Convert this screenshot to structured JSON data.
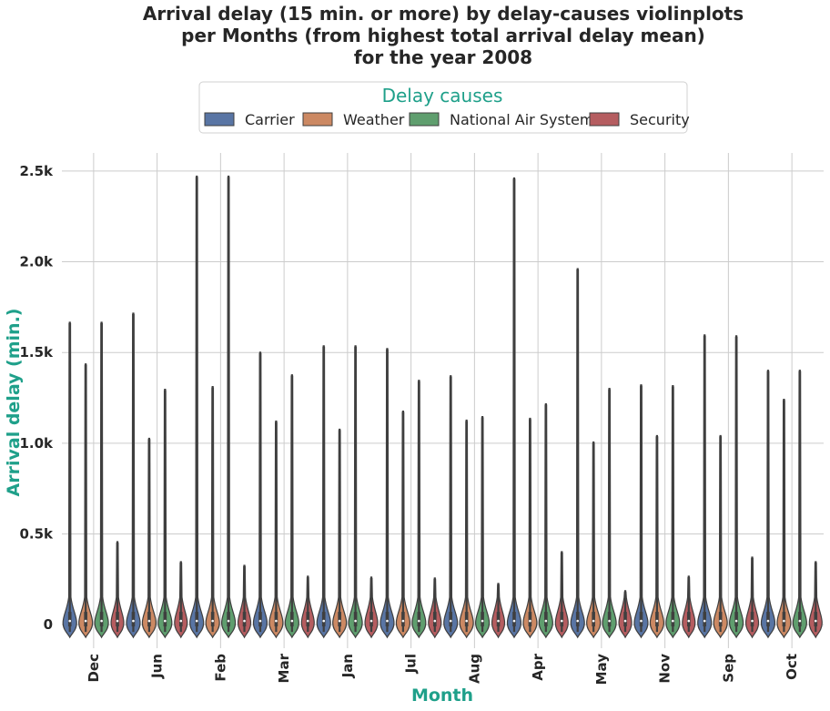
{
  "chart_data": {
    "type": "violin",
    "title_lines": [
      "Arrival delay (15 min. or more) by delay-causes violinplots",
      "per Months (from highest total arrival delay mean)",
      "for the year 2008"
    ],
    "xlabel": "Month",
    "ylabel": "Arrival delay (min.)",
    "label_color": "#1fa08a",
    "ylim": [
      -130,
      2600
    ],
    "yticks": [
      {
        "value": 0,
        "label": "0"
      },
      {
        "value": 500,
        "label": "0.5k"
      },
      {
        "value": 1000,
        "label": "1.0k"
      },
      {
        "value": 1500,
        "label": "1.5k"
      },
      {
        "value": 2000,
        "label": "2.0k"
      },
      {
        "value": 2500,
        "label": "2.5k"
      }
    ],
    "grid": true,
    "legend": {
      "title": "Delay causes",
      "placement": "top-center",
      "entries": [
        {
          "name": "Carrier",
          "color": "#5975a4"
        },
        {
          "name": "Weather",
          "color": "#cc8963"
        },
        {
          "name": "National Air System",
          "color": "#5f9e6e"
        },
        {
          "name": "Security",
          "color": "#b55d60"
        }
      ]
    },
    "categories": [
      "Dec",
      "Jun",
      "Feb",
      "Mar",
      "Jan",
      "Jul",
      "Aug",
      "Apr",
      "May",
      "Nov",
      "Sep",
      "Oct"
    ],
    "series": [
      {
        "name": "Carrier",
        "color": "#5975a4",
        "max": [
          1670,
          1720,
          2475,
          1505,
          1540,
          1525,
          1375,
          2465,
          1965,
          1325,
          1600,
          1405
        ]
      },
      {
        "name": "Weather",
        "color": "#cc8963",
        "max": [
          1440,
          1030,
          1315,
          1125,
          1080,
          1180,
          1130,
          1140,
          1010,
          1045,
          1045,
          1245
        ]
      },
      {
        "name": "National Air System",
        "color": "#5f9e6e",
        "max": [
          1670,
          1300,
          2475,
          1380,
          1540,
          1350,
          1150,
          1220,
          1305,
          1320,
          1595,
          1405
        ]
      },
      {
        "name": "Security",
        "color": "#b55d60",
        "max": [
          460,
          350,
          330,
          270,
          265,
          260,
          230,
          405,
          190,
          270,
          375,
          350
        ]
      }
    ]
  }
}
